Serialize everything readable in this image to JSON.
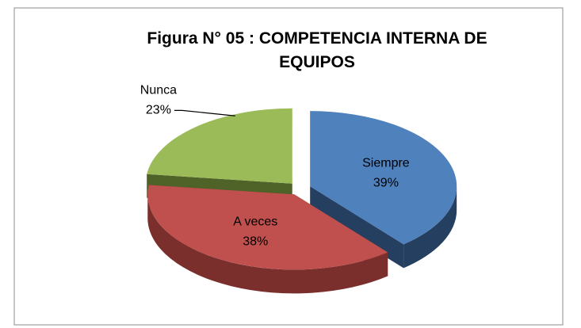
{
  "chart_data": {
    "type": "pie",
    "title": "Figura N° 05 : COMPETENCIA INTERNA DE EQUIPOS",
    "categories": [
      "Siempre",
      "A veces",
      "Nunca"
    ],
    "values": [
      39,
      38,
      23
    ],
    "value_labels": [
      "39%",
      "38%",
      "23%"
    ],
    "colors": [
      "#4f81bd",
      "#c0504d",
      "#9bbb59"
    ],
    "side_colors": [
      "#243f60",
      "#7a2f2d",
      "#4f6228"
    ]
  }
}
